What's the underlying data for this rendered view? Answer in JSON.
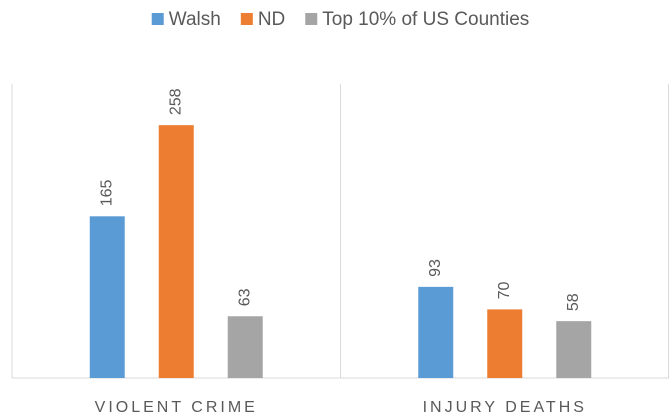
{
  "chart_data": {
    "type": "bar",
    "categories": [
      "VIOLENT CRIME",
      "INJURY DEATHS"
    ],
    "series": [
      {
        "name": "Walsh",
        "color": "#5b9bd5",
        "values": [
          165,
          93
        ]
      },
      {
        "name": "ND",
        "color": "#ed7d31",
        "values": [
          258,
          70
        ]
      },
      {
        "name": "Top 10% of US Counties",
        "color": "#a5a5a5",
        "values": [
          63,
          58
        ]
      }
    ],
    "ylim": [
      0,
      300
    ],
    "legend": "top"
  }
}
